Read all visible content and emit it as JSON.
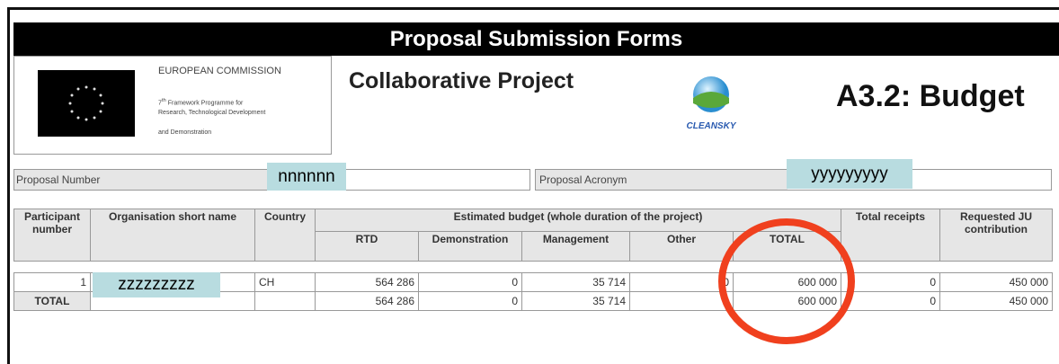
{
  "header": {
    "title": "Proposal Submission Forms",
    "org": "EUROPEAN COMMISSION",
    "programme_sup": "th",
    "programme_num": "7",
    "programme_line1": "Framework Programme for",
    "programme_line2": "Research, Technological Development",
    "programme_line3": "and Demonstration",
    "project_type": "Collaborative Project",
    "logo_text": "CLEANSKY",
    "form_id": "A3.2: Budget"
  },
  "fields": {
    "number_label": "Proposal Number",
    "number_value": "nnnnnn",
    "acronym_label": "Proposal Acronym",
    "acronym_value": "yyyyyyyyy"
  },
  "table": {
    "head": {
      "participant": "Participant number",
      "org": "Organisation short name",
      "country": "Country",
      "budget": "Estimated budget (whole duration of the project)",
      "rtd": "RTD",
      "demo": "Demonstration",
      "mgmt": "Management",
      "other": "Other",
      "total": "TOTAL",
      "receipts": "Total receipts",
      "requested": "Requested JU contribution"
    },
    "row": {
      "participant": "1",
      "org": "zzzzzzzzz",
      "country": "CH",
      "rtd": "564 286",
      "demo": "0",
      "mgmt": "35 714",
      "other": "0",
      "total": "600 000",
      "receipts": "0",
      "requested": "450 000"
    },
    "total_row": {
      "label": "TOTAL",
      "rtd": "564 286",
      "demo": "0",
      "mgmt": "35 714",
      "total": "600 000",
      "receipts": "0",
      "requested": "450 000"
    }
  }
}
